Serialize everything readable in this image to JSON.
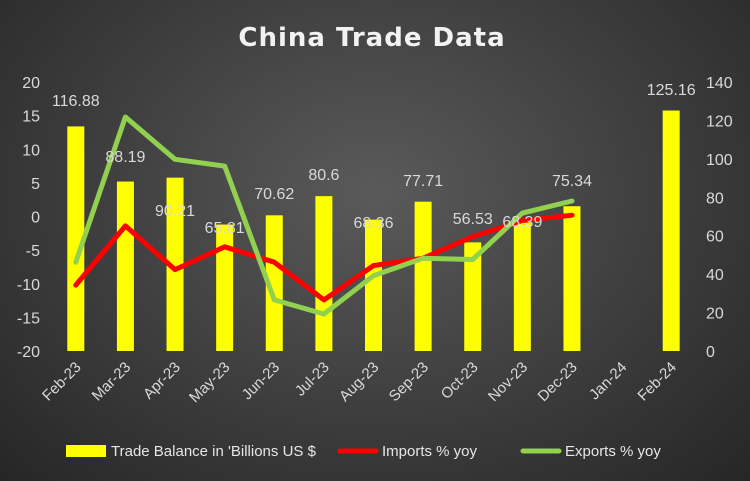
{
  "chart_data": {
    "type": "bar",
    "title": "China Trade Data",
    "categories": [
      "Feb-23",
      "Mar-23",
      "Apr-23",
      "May-23",
      "Jun-23",
      "Jul-23",
      "Aug-23",
      "Sep-23",
      "Oct-23",
      "Nov-23",
      "Dec-23",
      "Jan-24",
      "Feb-24"
    ],
    "y_left": {
      "min": -20,
      "max": 20,
      "step": 5
    },
    "y_right": {
      "min": 0,
      "max": 140,
      "step": 20
    },
    "grid": false,
    "legend_position": "bottom",
    "series": [
      {
        "name": "Trade Balance in 'Billions US $",
        "kind": "bar",
        "axis": "right",
        "color": "#ffff00",
        "values": [
          116.88,
          88.19,
          90.21,
          65.81,
          70.62,
          80.6,
          68.36,
          77.71,
          56.53,
          68.39,
          75.34,
          null,
          125.16
        ],
        "labels": [
          "116.88",
          "88.19",
          "90.21",
          "65.81",
          "70.62",
          "80.6",
          "68.36",
          "77.71",
          "56.53",
          "68.39",
          "75.34",
          "",
          "125.16"
        ]
      },
      {
        "name": "Imports % yoy",
        "kind": "line",
        "axis": "left",
        "color": "#ff0000",
        "values": [
          -10.2,
          -1.4,
          -7.9,
          -4.5,
          -6.8,
          -12.4,
          -7.3,
          -6.2,
          -3.0,
          -0.6,
          0.2,
          null,
          null
        ]
      },
      {
        "name": "Exports % yoy",
        "kind": "line",
        "axis": "left",
        "color": "#92d050",
        "values": [
          -6.8,
          14.8,
          8.5,
          7.5,
          -12.4,
          -14.5,
          -8.8,
          -6.2,
          -6.4,
          0.5,
          2.3,
          null,
          null
        ]
      }
    ]
  }
}
